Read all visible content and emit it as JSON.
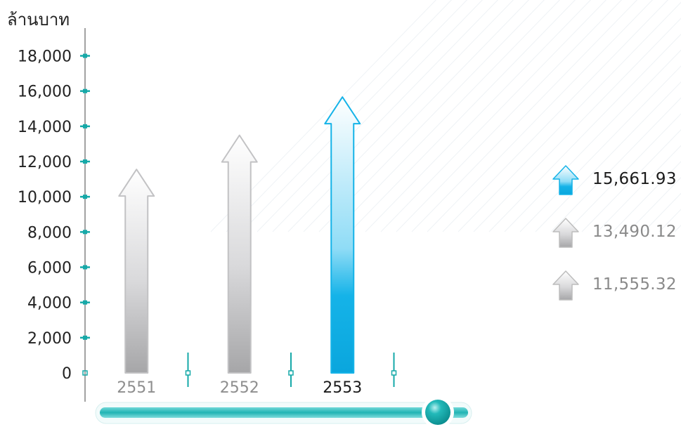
{
  "chart_data": {
    "type": "bar",
    "ylabel": "ล้านบาท",
    "ylim": [
      0,
      18000
    ],
    "y_ticks": [
      "0",
      "2,000",
      "4,000",
      "6,000",
      "8,000",
      "10,000",
      "12,000",
      "14,000",
      "16,000",
      "18,000"
    ],
    "categories": [
      "2551",
      "2552",
      "2553"
    ],
    "values": [
      11555.32,
      13490.12,
      15661.93
    ],
    "highlight_index": 2
  },
  "legend": [
    {
      "value": "15,661.93",
      "style": "blue"
    },
    {
      "value": "13,490.12",
      "style": "gray"
    },
    {
      "value": "11,555.32",
      "style": "gray"
    }
  ],
  "slider": {
    "value": 1.0
  },
  "colors": {
    "accent": "#15b3e8",
    "accent_dark": "#0aa6dd",
    "axis_marker": "#16a9a8",
    "gray_bar": "#a8a8aa",
    "slider_track": "#2cbdbd"
  }
}
